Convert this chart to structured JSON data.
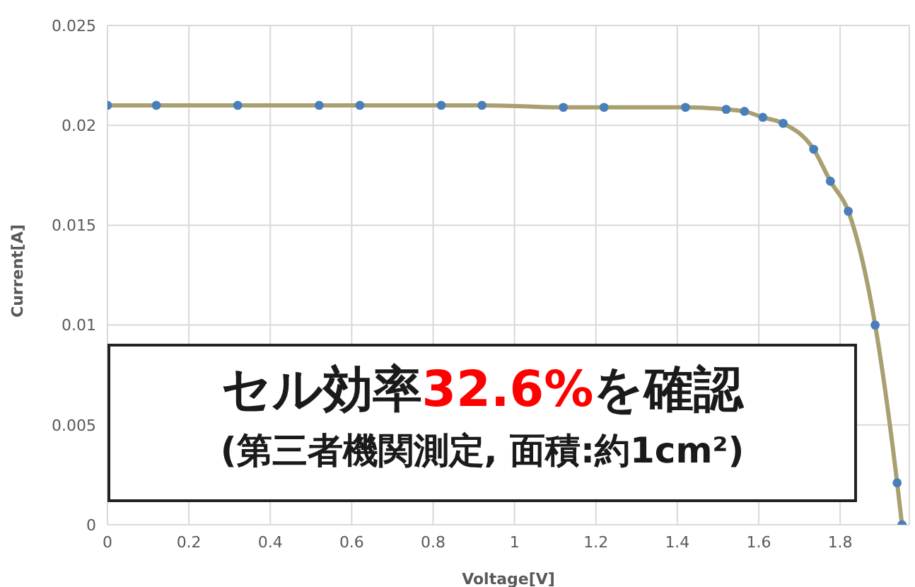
{
  "chart_data": {
    "type": "line",
    "xlabel": "Voltage[V]",
    "ylabel": "Current[A]",
    "x": [
      0,
      0.12,
      0.32,
      0.52,
      0.62,
      0.82,
      0.92,
      1.12,
      1.22,
      1.42,
      1.52,
      1.565,
      1.61,
      1.66,
      1.735,
      1.776,
      1.82,
      1.886,
      1.94,
      1.952
    ],
    "series": [
      {
        "color": "#a8a070",
        "marker": "none",
        "values": [
          0.021,
          0.021,
          0.021,
          0.021,
          0.021,
          0.021,
          0.021,
          0.0209,
          0.0209,
          0.0209,
          0.0208,
          0.0207,
          0.0204,
          0.0201,
          0.0188,
          0.0172,
          0.0157,
          0.01,
          0.0021,
          0
        ]
      },
      {
        "type": "scatter",
        "color": "#4a7ebb",
        "marker": "circle",
        "values": [
          0.021,
          0.021,
          0.021,
          0.021,
          0.021,
          0.021,
          0.021,
          0.0209,
          0.0209,
          0.0209,
          0.0208,
          0.0207,
          0.0204,
          0.0201,
          0.0188,
          0.0172,
          0.0157,
          0.01,
          0.0021,
          0
        ]
      }
    ],
    "xlim": [
      0,
      1.97
    ],
    "xticks": [
      0,
      0.2,
      0.4,
      0.6,
      0.8,
      1,
      1.2,
      1.4,
      1.6,
      1.8
    ],
    "ylim": [
      0,
      0.025
    ],
    "yticks": [
      0,
      0.005,
      0.01,
      0.015,
      0.02,
      0.025
    ],
    "grid": true,
    "annotations": [
      "セル効率32.6%を確認",
      "(第三者機関測定, 面積:約1cm²)"
    ]
  }
}
